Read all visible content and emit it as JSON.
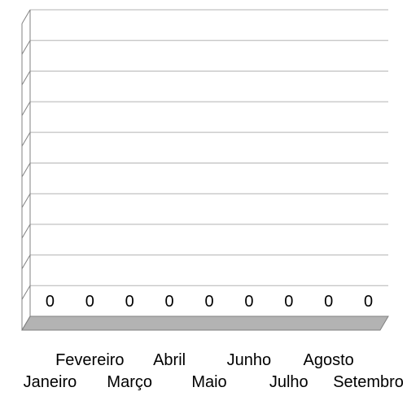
{
  "chart_data": {
    "type": "bar",
    "style": "3d",
    "categories": [
      "Janeiro",
      "Fevereiro",
      "Março",
      "Abril",
      "Maio",
      "Junho",
      "Julho",
      "Agosto",
      "Setembro"
    ],
    "values": [
      0,
      0,
      0,
      0,
      0,
      0,
      0,
      0,
      0
    ],
    "data_labels": [
      "0",
      "0",
      "0",
      "0",
      "0",
      "0",
      "0",
      "0",
      "0"
    ],
    "title": "",
    "xlabel": "",
    "ylabel": "",
    "grid": true,
    "y_tick_labels_visible": false,
    "category_labels_staggered": true,
    "colors": {
      "floor": "#b3b3b3",
      "grid": "#b3b3b3",
      "axis": "#808080",
      "text": "#000000"
    }
  }
}
